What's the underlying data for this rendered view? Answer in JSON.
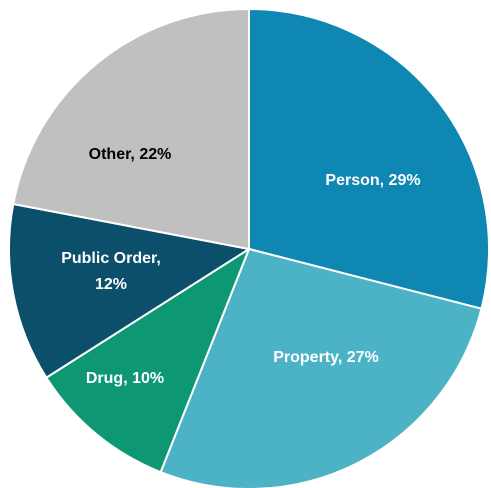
{
  "chart_data": {
    "type": "pie",
    "title": "",
    "slices": [
      {
        "label": "Person",
        "value": 29,
        "display": "Person, 29%",
        "color": "#0e87b3",
        "text_color": "#ffffff"
      },
      {
        "label": "Property",
        "value": 27,
        "display": "Property, 27%",
        "color": "#4cb3c6",
        "text_color": "#ffffff"
      },
      {
        "label": "Drug",
        "value": 10,
        "display": "Drug, 10%",
        "color": "#0d9873",
        "text_color": "#ffffff"
      },
      {
        "label": "Public Order",
        "value": 12,
        "display_lines": [
          "Public Order,",
          "12%"
        ],
        "color": "#0b4f6b",
        "text_color": "#ffffff"
      },
      {
        "label": "Other",
        "value": 22,
        "display": "Other, 22%",
        "color": "#c0c0c0",
        "text_color": "#000000"
      }
    ]
  }
}
